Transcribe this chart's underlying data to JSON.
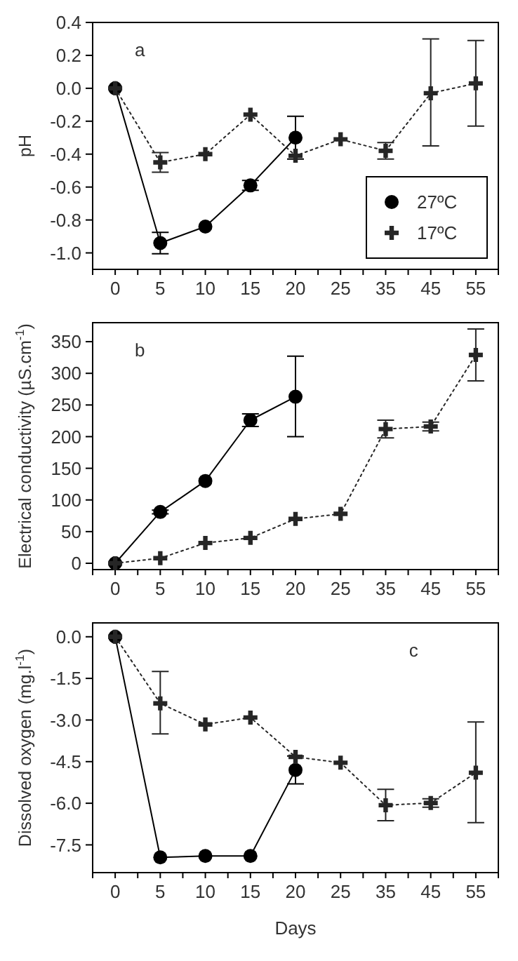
{
  "chart_data": [
    {
      "type": "line",
      "ylabel": "pH",
      "annotations": [
        "a"
      ],
      "categories": [
        "0",
        "5",
        "10",
        "15",
        "20",
        "25",
        "35",
        "45",
        "55"
      ],
      "ylim": [
        -1.1,
        0.4
      ],
      "yticks": [
        {
          "value": -1.0,
          "label": "-1.0"
        },
        {
          "value": -0.8,
          "label": "-0.8"
        },
        {
          "value": -0.6,
          "label": "-0.6"
        },
        {
          "value": -0.4,
          "label": "-0.4"
        },
        {
          "value": -0.2,
          "label": "-0.2"
        },
        {
          "value": 0,
          "label": "0.0"
        },
        {
          "value": 0.2,
          "label": "0.2"
        },
        {
          "value": 0.4,
          "label": "0.4"
        }
      ],
      "legend": "bottom right",
      "series": [
        {
          "name": "27ºC",
          "color": "#000000",
          "marker": "circle",
          "line_style": "solid",
          "values": [
            0,
            -0.94,
            -0.84,
            -0.59,
            -0.3,
            null,
            null,
            null,
            null
          ],
          "errors": [
            null,
            0.065,
            null,
            0.03,
            0.13,
            null,
            null,
            null,
            null
          ]
        },
        {
          "name": "17ºC",
          "color": "#262626",
          "marker": "cross",
          "line_style": "dotted",
          "values": [
            0,
            -0.45,
            -0.4,
            -0.16,
            -0.41,
            -0.31,
            -0.38,
            -0.03,
            0.03
          ],
          "errors": [
            null,
            0.06,
            null,
            null,
            null,
            null,
            0.05,
            [
              -0.35,
              0.3
            ],
            [
              -0.23,
              0.29
            ]
          ]
        }
      ]
    },
    {
      "type": "line",
      "ylabel": "Electrical conductivity (µS.cm$^{-1}$)",
      "annotations": [
        "b"
      ],
      "categories": [
        "0",
        "5",
        "10",
        "15",
        "20",
        "25",
        "35",
        "45",
        "55"
      ],
      "ylim": [
        -10,
        380
      ],
      "yticks": [
        0,
        50,
        100,
        150,
        200,
        250,
        300,
        350
      ],
      "series": [
        {
          "color": "#000000",
          "marker": "circle",
          "line_style": "solid",
          "values": [
            0,
            81,
            130,
            226,
            263,
            null,
            null,
            null,
            null
          ],
          "errors": [
            null,
            3,
            null,
            10,
            [
              200,
              327
            ],
            null,
            null,
            null,
            null
          ]
        },
        {
          "color": "#262626",
          "marker": "cross",
          "line_style": "dotted",
          "values": [
            0,
            8,
            32,
            40,
            70,
            78,
            212,
            216,
            329
          ],
          "errors": [
            null,
            null,
            null,
            null,
            null,
            null,
            [
              198,
              226
            ],
            7,
            [
              288,
              370
            ]
          ]
        }
      ]
    },
    {
      "type": "line",
      "xlabel": "Days",
      "ylabel": "Dissolved oxygen (mg.l$^{-1}$)",
      "annotations": [
        "c"
      ],
      "categories": [
        "0",
        "5",
        "10",
        "15",
        "20",
        "25",
        "35",
        "45",
        "55"
      ],
      "ylim": [
        -8.5,
        0.5
      ],
      "yticks": [
        {
          "value": -7.5,
          "label": "-7.5"
        },
        {
          "value": -6,
          "label": "-6.0"
        },
        {
          "value": -4.5,
          "label": "-4.5"
        },
        {
          "value": -3,
          "label": "-3.0"
        },
        {
          "value": -1.5,
          "label": "-1.5"
        },
        {
          "value": 0,
          "label": "0.0"
        }
      ],
      "series": [
        {
          "color": "#000000",
          "marker": "circle",
          "line_style": "solid",
          "values": [
            0,
            -7.95,
            -7.9,
            -7.9,
            -4.8,
            null,
            null,
            null,
            null
          ],
          "errors": [
            null,
            null,
            null,
            null,
            0.5,
            null,
            null,
            null,
            null
          ]
        },
        {
          "color": "#262626",
          "marker": "cross",
          "line_style": "dotted",
          "values": [
            0,
            -2.4,
            -3.16,
            -2.91,
            -4.33,
            -4.54,
            -6.07,
            -5.99,
            -4.9
          ],
          "errors": [
            null,
            [
              -3.5,
              -1.25
            ],
            null,
            null,
            null,
            null,
            [
              -6.63,
              -5.5
            ],
            0.15,
            [
              -6.7,
              -3.07
            ]
          ]
        }
      ]
    }
  ]
}
